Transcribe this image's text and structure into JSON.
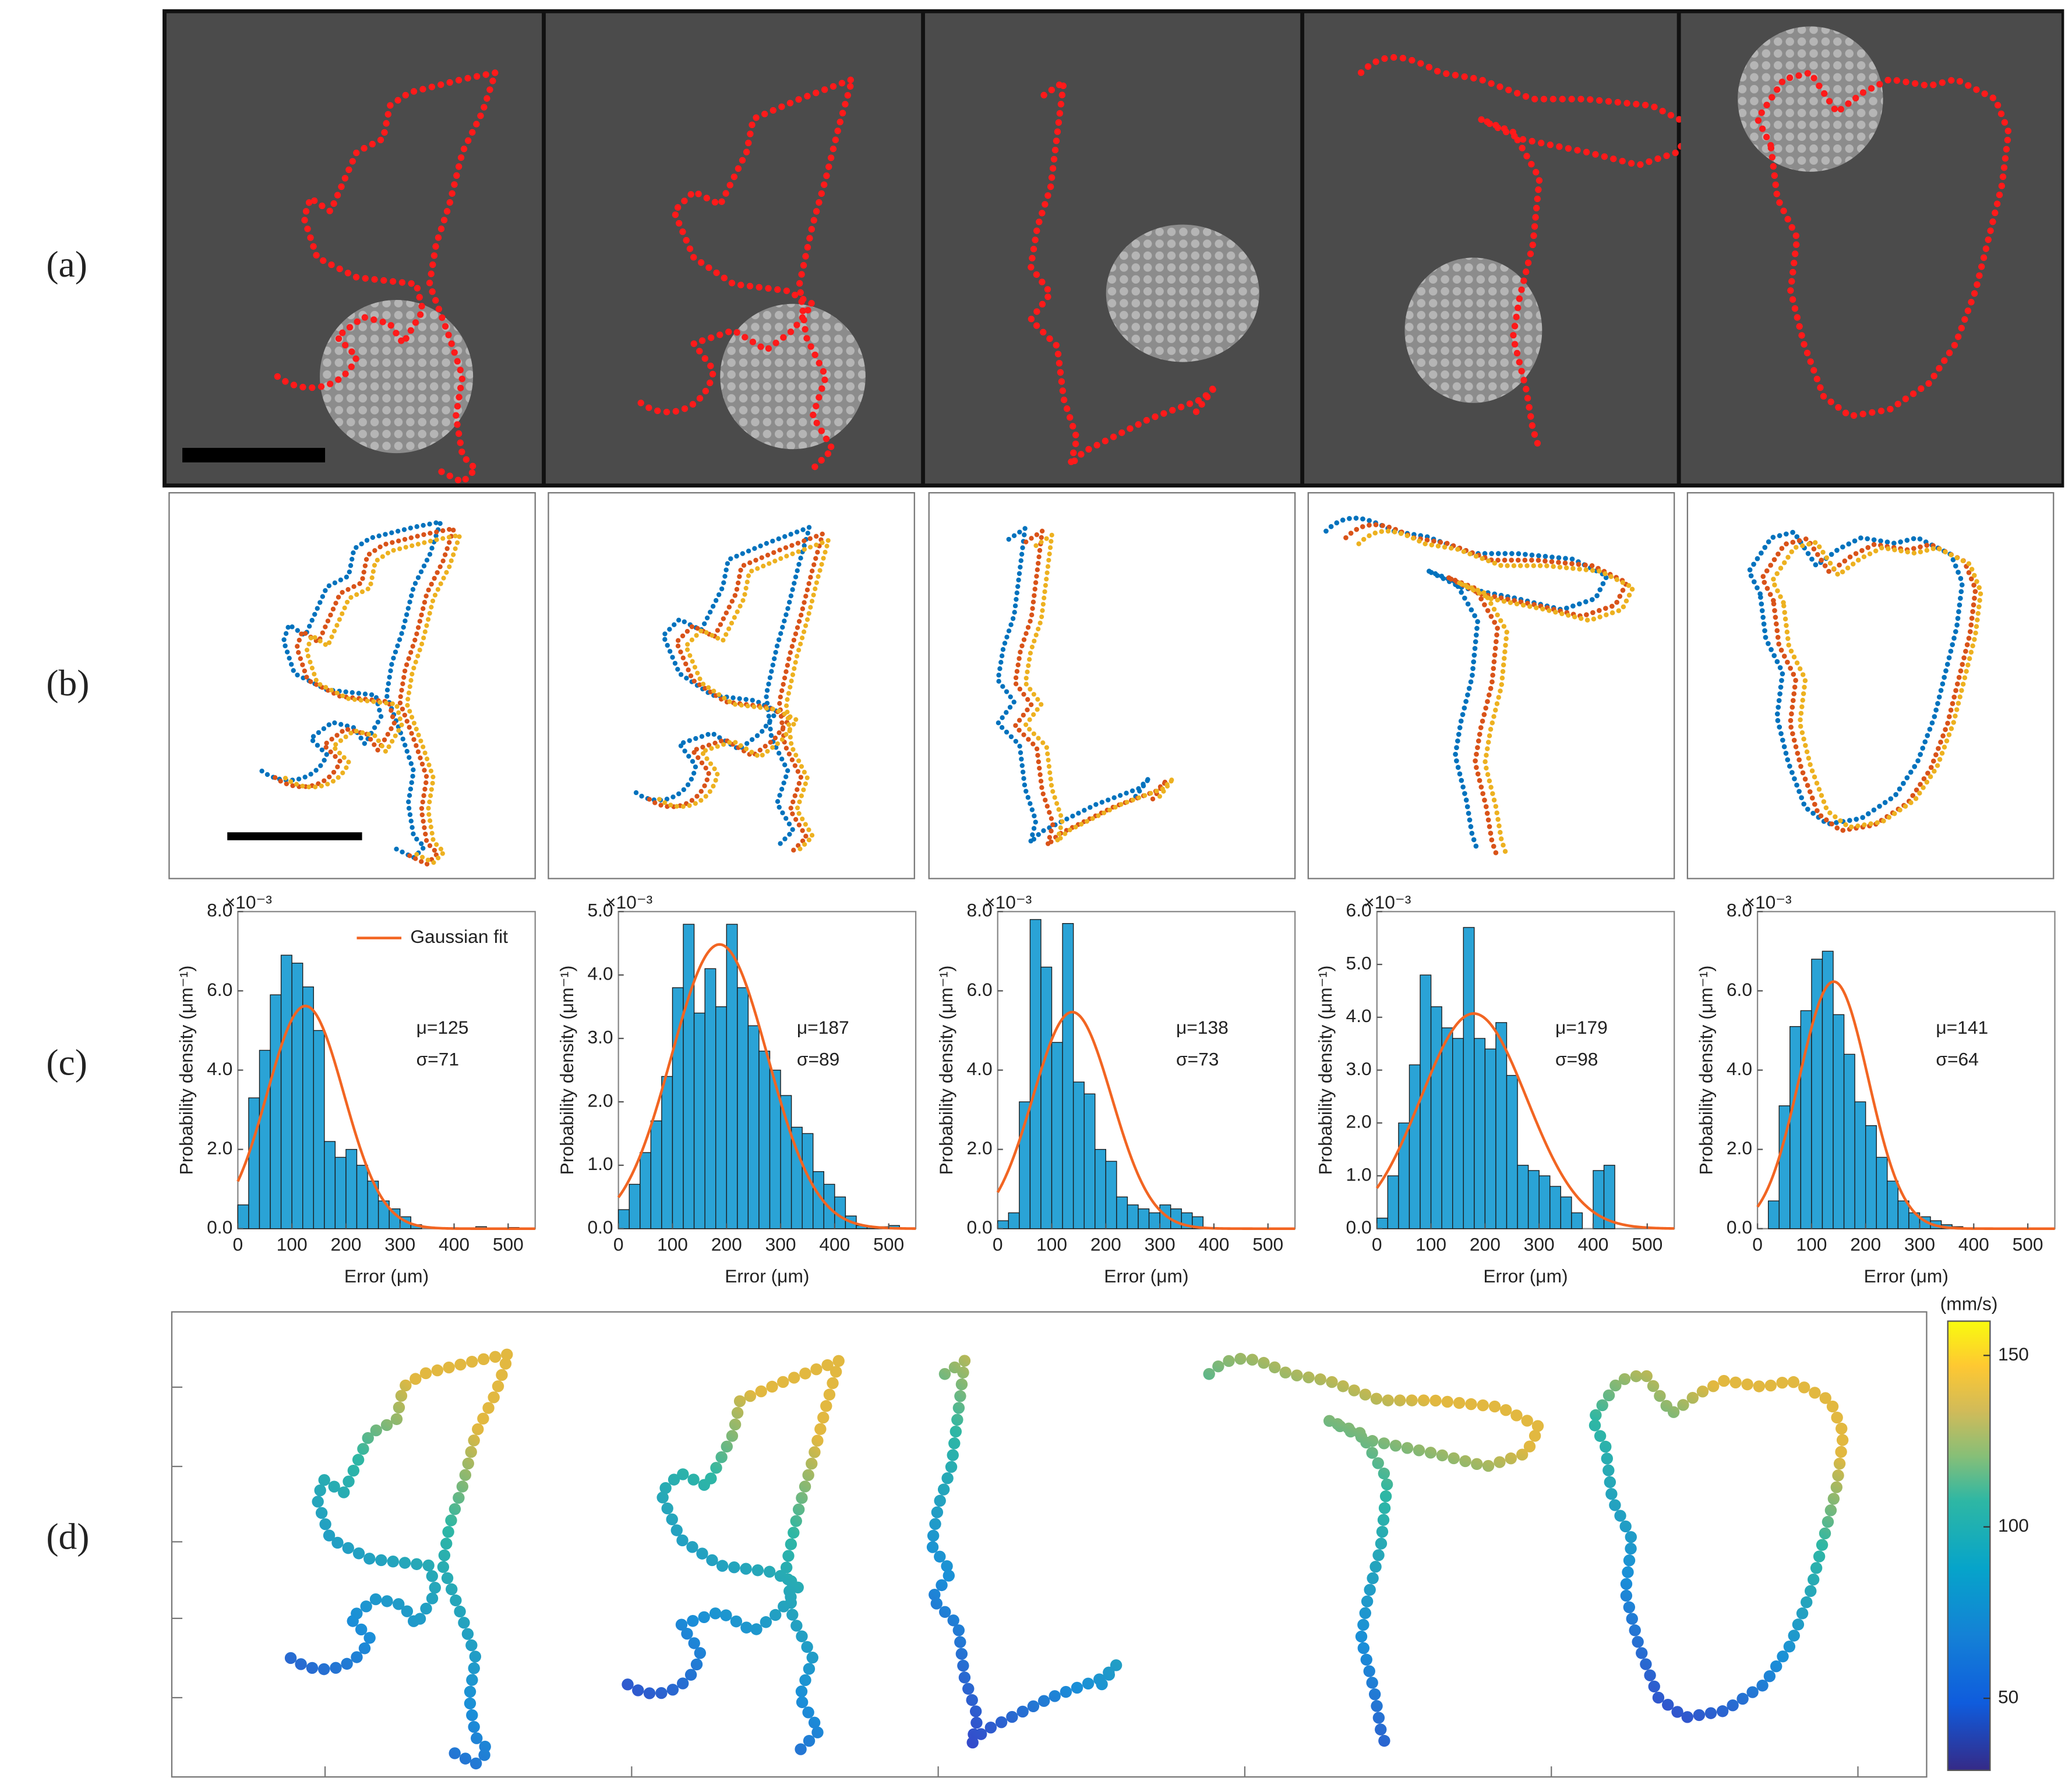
{
  "panel_labels": [
    "(a)",
    "(b)",
    "(c)",
    "(d)"
  ],
  "chart_data": [
    {
      "type": "histogram",
      "color": "#2aa3d6",
      "xlabel": "Error (μm)",
      "ylabel": "Probability density (μm⁻¹)",
      "offset": {
        "value": 0.001,
        "label": "×10⁻³"
      },
      "bins": [
        0,
        20,
        40,
        60,
        80,
        100,
        120,
        140,
        160,
        180,
        200,
        220,
        240,
        260,
        280,
        300,
        320,
        340,
        360,
        380,
        400,
        420,
        440,
        460,
        480,
        500,
        520
      ],
      "values": [
        0.6,
        3.3,
        4.5,
        5.9,
        6.9,
        6.7,
        6.1,
        5.0,
        2.2,
        1.8,
        2.0,
        1.6,
        1.2,
        0.7,
        0.5,
        0.3,
        0.1,
        0,
        0,
        0,
        0,
        0,
        0.05,
        0,
        0,
        0.03
      ],
      "xlim": [
        0,
        550
      ],
      "xticks": [
        0,
        100,
        200,
        300,
        400,
        500
      ],
      "ylim": [
        0,
        8
      ],
      "yticks": [
        {
          "value": 0,
          "label": "0.0"
        },
        {
          "value": 2,
          "label": "2.0"
        },
        {
          "value": 4,
          "label": "4.0"
        },
        {
          "value": 6,
          "label": "6.0"
        },
        {
          "value": 8,
          "label": "8.0"
        }
      ],
      "fit": {
        "name": "Gaussian fit",
        "color": "#f26522",
        "mu": {
          "value": 125,
          "label": "μ=125"
        },
        "sigma": {
          "value": 71,
          "label": "σ=71"
        }
      }
    },
    {
      "type": "histogram",
      "color": "#2aa3d6",
      "xlabel": "Error (μm)",
      "ylabel": "Probability density (μm⁻¹)",
      "offset": {
        "value": 0.001,
        "label": "×10⁻³"
      },
      "bins": [
        0,
        20,
        40,
        60,
        80,
        100,
        120,
        140,
        160,
        180,
        200,
        220,
        240,
        260,
        280,
        300,
        320,
        340,
        360,
        380,
        400,
        420,
        440,
        460,
        480,
        500,
        520
      ],
      "values": [
        0.3,
        0.7,
        1.2,
        1.7,
        2.4,
        3.8,
        4.8,
        3.4,
        4.1,
        3.5,
        4.8,
        3.8,
        3.2,
        2.8,
        2.5,
        2.1,
        1.6,
        1.5,
        0.9,
        0.7,
        0.5,
        0.2,
        0.05,
        0.03,
        0.03,
        0.05
      ],
      "xlim": [
        0,
        550
      ],
      "xticks": [
        0,
        100,
        200,
        300,
        400,
        500
      ],
      "ylim": [
        0,
        5
      ],
      "yticks": [
        {
          "value": 0,
          "label": "0.0"
        },
        {
          "value": 1,
          "label": "1.0"
        },
        {
          "value": 2,
          "label": "2.0"
        },
        {
          "value": 3,
          "label": "3.0"
        },
        {
          "value": 4,
          "label": "4.0"
        },
        {
          "value": 5,
          "label": "5.0"
        }
      ],
      "fit": {
        "color": "#f26522",
        "mu": {
          "value": 187,
          "label": "μ=187"
        },
        "sigma": {
          "value": 89,
          "label": "σ=89"
        }
      }
    },
    {
      "type": "histogram",
      "color": "#2aa3d6",
      "xlabel": "Error (μm)",
      "ylabel": "Probability density (μm⁻¹)",
      "offset": {
        "value": 0.001,
        "label": "×10⁻³"
      },
      "bins": [
        0,
        20,
        40,
        60,
        80,
        100,
        120,
        140,
        160,
        180,
        200,
        220,
        240,
        260,
        280,
        300,
        320,
        340,
        360,
        380
      ],
      "values": [
        0.2,
        0.4,
        3.2,
        7.8,
        6.6,
        4.7,
        7.7,
        3.7,
        3.4,
        2.0,
        1.7,
        0.8,
        0.6,
        0.5,
        0.4,
        0.6,
        0.5,
        0.4,
        0.3
      ],
      "xlim": [
        0,
        550
      ],
      "xticks": [
        0,
        100,
        200,
        300,
        400,
        500
      ],
      "ylim": [
        0,
        8
      ],
      "yticks": [
        {
          "value": 0,
          "label": "0.0"
        },
        {
          "value": 2,
          "label": "2.0"
        },
        {
          "value": 4,
          "label": "4.0"
        },
        {
          "value": 6,
          "label": "6.0"
        },
        {
          "value": 8,
          "label": "8.0"
        }
      ],
      "fit": {
        "color": "#f26522",
        "mu": {
          "value": 138,
          "label": "μ=138"
        },
        "sigma": {
          "value": 73,
          "label": "σ=73"
        }
      }
    },
    {
      "type": "histogram",
      "color": "#2aa3d6",
      "xlabel": "Error (μm)",
      "ylabel": "Probability density (μm⁻¹)",
      "offset": {
        "value": 0.001,
        "label": "×10⁻³"
      },
      "bins": [
        0,
        20,
        40,
        60,
        80,
        100,
        120,
        140,
        160,
        180,
        200,
        220,
        240,
        260,
        280,
        300,
        320,
        340,
        360,
        380,
        400,
        420,
        440
      ],
      "values": [
        0.2,
        1.0,
        2.0,
        3.1,
        4.8,
        4.2,
        3.8,
        3.6,
        5.7,
        3.6,
        3.4,
        3.9,
        2.9,
        1.2,
        1.1,
        1.0,
        0.8,
        0.6,
        0.3,
        0,
        1.1,
        1.2
      ],
      "xlim": [
        0,
        550
      ],
      "xticks": [
        0,
        100,
        200,
        300,
        400,
        500
      ],
      "ylim": [
        0,
        6
      ],
      "yticks": [
        {
          "value": 0,
          "label": "0.0"
        },
        {
          "value": 1,
          "label": "1.0"
        },
        {
          "value": 2,
          "label": "2.0"
        },
        {
          "value": 3,
          "label": "3.0"
        },
        {
          "value": 4,
          "label": "4.0"
        },
        {
          "value": 5,
          "label": "5.0"
        },
        {
          "value": 6,
          "label": "6.0"
        }
      ],
      "fit": {
        "color": "#f26522",
        "mu": {
          "value": 179,
          "label": "μ=179"
        },
        "sigma": {
          "value": 98,
          "label": "σ=98"
        }
      }
    },
    {
      "type": "histogram",
      "color": "#2aa3d6",
      "xlabel": "Error (μm)",
      "ylabel": "Probability density (μm⁻¹)",
      "offset": {
        "value": 0.001,
        "label": "×10⁻³"
      },
      "bins": [
        0,
        20,
        40,
        60,
        80,
        100,
        120,
        140,
        160,
        180,
        200,
        220,
        240,
        260,
        280,
        300,
        320,
        340,
        360,
        380
      ],
      "values": [
        0,
        0.7,
        3.1,
        5.1,
        5.5,
        6.8,
        7.0,
        5.4,
        4.4,
        3.2,
        2.6,
        1.8,
        1.2,
        0.7,
        0.4,
        0.3,
        0.2,
        0.1,
        0.05
      ],
      "xlim": [
        0,
        550
      ],
      "xticks": [
        0,
        100,
        200,
        300,
        400,
        500
      ],
      "ylim": [
        0,
        8
      ],
      "yticks": [
        {
          "value": 0,
          "label": "0.0"
        },
        {
          "value": 2,
          "label": "2.0"
        },
        {
          "value": 4,
          "label": "4.0"
        },
        {
          "value": 6,
          "label": "6.0"
        },
        {
          "value": 8,
          "label": "8.0"
        }
      ],
      "fit": {
        "color": "#f26522",
        "mu": {
          "value": 141,
          "label": "μ=141"
        },
        "sigma": {
          "value": 64,
          "label": "σ=64"
        }
      }
    },
    {
      "type": "colorbar",
      "label": "(mm/s)",
      "ylim": [
        29,
        160
      ],
      "yticks": [
        50,
        100,
        150
      ]
    }
  ]
}
